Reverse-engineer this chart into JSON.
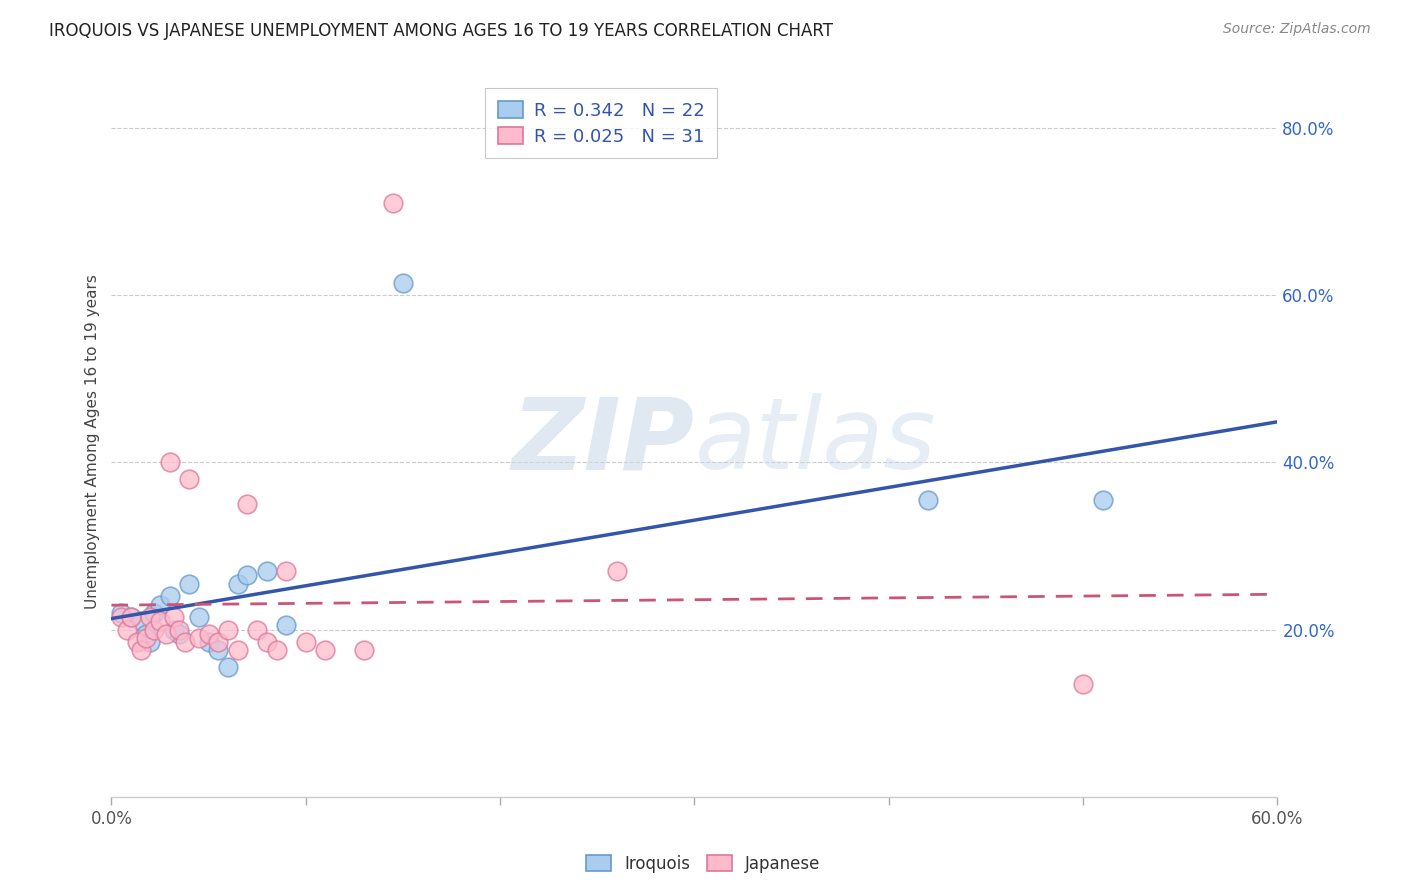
{
  "title": "IROQUOIS VS JAPANESE UNEMPLOYMENT AMONG AGES 16 TO 19 YEARS CORRELATION CHART",
  "source": "Source: ZipAtlas.com",
  "ylabel": "Unemployment Among Ages 16 to 19 years",
  "xlim": [
    0.0,
    0.6
  ],
  "ylim": [
    0.0,
    0.85
  ],
  "xticks": [
    0.0,
    0.1,
    0.2,
    0.3,
    0.4,
    0.5,
    0.6
  ],
  "xtick_labels": [
    "0.0%",
    "",
    "",
    "",
    "",
    "",
    "60.0%"
  ],
  "yticks_right": [
    0.2,
    0.4,
    0.6,
    0.8
  ],
  "ytick_labels_right": [
    "20.0%",
    "40.0%",
    "60.0%",
    "80.0%"
  ],
  "blue_line_color": "#3355AA",
  "blue_scatter_face": "#AACCEE",
  "blue_scatter_edge": "#6699CC",
  "pink_line_color": "#CC5577",
  "pink_scatter_face": "#FFBBCC",
  "pink_scatter_edge": "#DD7799",
  "blue_R": 0.342,
  "blue_N": 22,
  "pink_R": 0.025,
  "pink_N": 31,
  "grid_color": "#CCCCCC",
  "iroquois_x": [
    0.005,
    0.01,
    0.015,
    0.018,
    0.02,
    0.022,
    0.025,
    0.03,
    0.032,
    0.035,
    0.04,
    0.045,
    0.05,
    0.055,
    0.06,
    0.065,
    0.07,
    0.08,
    0.09,
    0.15,
    0.42,
    0.51
  ],
  "iroquois_y": [
    0.22,
    0.215,
    0.21,
    0.195,
    0.185,
    0.22,
    0.23,
    0.24,
    0.2,
    0.195,
    0.255,
    0.215,
    0.185,
    0.175,
    0.155,
    0.255,
    0.265,
    0.27,
    0.205,
    0.615,
    0.355,
    0.355
  ],
  "japanese_x": [
    0.005,
    0.008,
    0.01,
    0.013,
    0.015,
    0.018,
    0.02,
    0.022,
    0.025,
    0.028,
    0.03,
    0.032,
    0.035,
    0.038,
    0.04,
    0.045,
    0.05,
    0.055,
    0.06,
    0.065,
    0.07,
    0.075,
    0.08,
    0.085,
    0.09,
    0.1,
    0.11,
    0.13,
    0.145,
    0.26,
    0.5
  ],
  "japanese_y": [
    0.215,
    0.2,
    0.215,
    0.185,
    0.175,
    0.19,
    0.215,
    0.2,
    0.21,
    0.195,
    0.4,
    0.215,
    0.2,
    0.185,
    0.38,
    0.19,
    0.195,
    0.185,
    0.2,
    0.175,
    0.35,
    0.2,
    0.185,
    0.175,
    0.27,
    0.185,
    0.175,
    0.175,
    0.71,
    0.27,
    0.135
  ]
}
